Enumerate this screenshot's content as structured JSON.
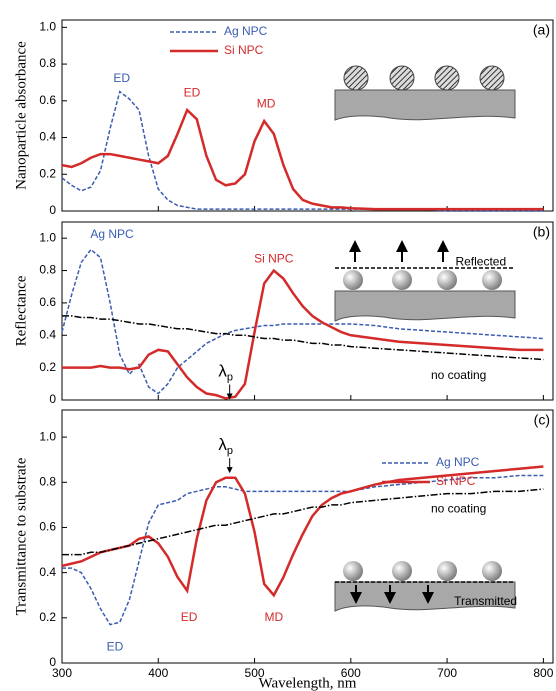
{
  "chart_data": [
    {
      "type": "line",
      "ylabel": "Nanoparticle absorbance",
      "panel_label": "(a)",
      "legend": true,
      "x": [
        300,
        310,
        320,
        330,
        340,
        350,
        360,
        370,
        380,
        390,
        400,
        410,
        420,
        430,
        440,
        450,
        460,
        470,
        480,
        490,
        500,
        510,
        520,
        530,
        540,
        550,
        560,
        570,
        580,
        590,
        600,
        625,
        650,
        675,
        700,
        725,
        750,
        775,
        800
      ],
      "xlim": [
        300,
        810
      ],
      "ylim": [
        0,
        1.04
      ],
      "yticks": [
        0,
        0.2,
        0.4,
        0.6,
        0.8,
        {
          "value": 1,
          "label": "1.0"
        }
      ],
      "series": [
        {
          "name": "Ag NPC",
          "color": "#3a5db0",
          "dash": "dashed",
          "values": [
            0.18,
            0.14,
            0.11,
            0.13,
            0.22,
            0.45,
            0.65,
            0.61,
            0.55,
            0.3,
            0.12,
            0.06,
            0.03,
            0.02,
            0.01,
            0.01,
            0.01,
            0.01,
            0.01,
            0.01,
            0.01,
            0.01,
            0.01,
            0.01,
            0.01,
            0.01,
            0.01,
            0.01,
            0.01,
            0.01,
            0.01,
            0.01,
            0.01,
            0.01,
            0,
            0,
            0,
            0,
            0
          ]
        },
        {
          "name": "Si NPC",
          "color": "#d42a2a",
          "dash": "solid",
          "values": [
            0.25,
            0.24,
            0.26,
            0.29,
            0.31,
            0.31,
            0.3,
            0.29,
            0.28,
            0.27,
            0.26,
            0.3,
            0.42,
            0.55,
            0.5,
            0.3,
            0.17,
            0.14,
            0.15,
            0.2,
            0.38,
            0.49,
            0.42,
            0.25,
            0.12,
            0.06,
            0.04,
            0.03,
            0.02,
            0.02,
            0.015,
            0.01,
            0.01,
            0.01,
            0.01,
            0.01,
            0.01,
            0.01,
            0.01
          ]
        }
      ],
      "annotations": [
        {
          "text": "ED",
          "color": "#3a5db0"
        },
        {
          "text": "ED",
          "color": "#d42a2a"
        },
        {
          "text": "MD",
          "color": "#d42a2a"
        }
      ]
    },
    {
      "type": "line",
      "ylabel": "Reflectance",
      "panel_label": "(b)",
      "legend": false,
      "x": [
        300,
        310,
        320,
        330,
        340,
        350,
        360,
        370,
        380,
        390,
        400,
        410,
        420,
        430,
        440,
        450,
        460,
        470,
        480,
        490,
        500,
        510,
        520,
        530,
        540,
        550,
        560,
        570,
        580,
        590,
        600,
        625,
        650,
        675,
        700,
        725,
        750,
        775,
        800
      ],
      "xlim": [
        300,
        810
      ],
      "ylim": [
        0,
        1.1
      ],
      "yticks": [
        0,
        0.2,
        0.4,
        0.6,
        0.8,
        {
          "value": 1,
          "label": "1.0"
        }
      ],
      "series": [
        {
          "name": "Ag NPC",
          "color": "#3a5db0",
          "dash": "dashed",
          "values": [
            0.42,
            0.65,
            0.85,
            0.93,
            0.88,
            0.6,
            0.28,
            0.16,
            0.22,
            0.08,
            0.04,
            0.1,
            0.2,
            0.25,
            0.3,
            0.35,
            0.38,
            0.41,
            0.43,
            0.44,
            0.45,
            0.46,
            0.46,
            0.47,
            0.47,
            0.47,
            0.47,
            0.47,
            0.47,
            0.47,
            0.47,
            0.46,
            0.44,
            0.43,
            0.42,
            0.41,
            0.4,
            0.39,
            0.38
          ]
        },
        {
          "name": "Si NPC",
          "color": "#d42a2a",
          "dash": "solid",
          "values": [
            0.2,
            0.2,
            0.2,
            0.2,
            0.21,
            0.2,
            0.2,
            0.19,
            0.2,
            0.28,
            0.31,
            0.3,
            0.22,
            0.14,
            0.08,
            0.04,
            0.03,
            0.01,
            0.02,
            0.1,
            0.42,
            0.72,
            0.8,
            0.75,
            0.66,
            0.58,
            0.52,
            0.48,
            0.45,
            0.42,
            0.4,
            0.38,
            0.36,
            0.35,
            0.34,
            0.33,
            0.32,
            0.31,
            0.31
          ]
        },
        {
          "name": "no coating",
          "color": "#000000",
          "dash": "dashdot",
          "values": [
            0.52,
            0.52,
            0.51,
            0.51,
            0.5,
            0.5,
            0.49,
            0.48,
            0.47,
            0.47,
            0.46,
            0.45,
            0.44,
            0.44,
            0.43,
            0.42,
            0.41,
            0.41,
            0.4,
            0.4,
            0.39,
            0.38,
            0.38,
            0.37,
            0.37,
            0.36,
            0.35,
            0.35,
            0.34,
            0.34,
            0.33,
            0.32,
            0.31,
            0.3,
            0.29,
            0.28,
            0.27,
            0.26,
            0.25
          ]
        }
      ],
      "annotations": [
        {
          "text": "λ",
          "subscript": "p",
          "color": "#000000"
        },
        {
          "text": "Reflected",
          "color": "#000000"
        }
      ]
    },
    {
      "type": "line",
      "ylabel": "Transmittance to substrate",
      "xlabel": "Wavelength, nm",
      "panel_label": "(c)",
      "legend": true,
      "x": [
        300,
        310,
        320,
        330,
        340,
        350,
        360,
        370,
        380,
        390,
        400,
        410,
        420,
        430,
        440,
        450,
        460,
        470,
        480,
        490,
        500,
        510,
        520,
        530,
        540,
        550,
        560,
        570,
        580,
        590,
        600,
        625,
        650,
        675,
        700,
        725,
        750,
        775,
        800
      ],
      "xlim": [
        300,
        810
      ],
      "ylim": [
        0,
        1.12
      ],
      "xticks": [
        300,
        400,
        500,
        600,
        700,
        800
      ],
      "yticks": [
        0,
        0.2,
        0.4,
        0.6,
        0.8,
        {
          "value": 1,
          "label": "1.0"
        }
      ],
      "series": [
        {
          "name": "Ag NPC",
          "color": "#3a5db0",
          "dash": "dashed",
          "values": [
            0.42,
            0.42,
            0.4,
            0.33,
            0.24,
            0.17,
            0.18,
            0.28,
            0.45,
            0.62,
            0.7,
            0.71,
            0.72,
            0.75,
            0.76,
            0.77,
            0.78,
            0.78,
            0.77,
            0.76,
            0.76,
            0.76,
            0.76,
            0.76,
            0.76,
            0.76,
            0.76,
            0.76,
            0.76,
            0.76,
            0.76,
            0.78,
            0.79,
            0.8,
            0.81,
            0.82,
            0.82,
            0.83,
            0.83
          ]
        },
        {
          "name": "Si NPC",
          "color": "#d42a2a",
          "dash": "solid",
          "values": [
            0.43,
            0.44,
            0.45,
            0.47,
            0.49,
            0.5,
            0.51,
            0.52,
            0.55,
            0.56,
            0.53,
            0.47,
            0.38,
            0.32,
            0.55,
            0.72,
            0.8,
            0.82,
            0.82,
            0.75,
            0.58,
            0.35,
            0.3,
            0.38,
            0.48,
            0.57,
            0.65,
            0.7,
            0.73,
            0.75,
            0.76,
            0.79,
            0.81,
            0.82,
            0.83,
            0.84,
            0.85,
            0.86,
            0.87
          ]
        },
        {
          "name": "no coating",
          "color": "#000000",
          "dash": "dashdot",
          "values": [
            0.48,
            0.48,
            0.48,
            0.49,
            0.49,
            0.5,
            0.51,
            0.52,
            0.53,
            0.54,
            0.55,
            0.56,
            0.57,
            0.58,
            0.59,
            0.6,
            0.61,
            0.61,
            0.62,
            0.63,
            0.64,
            0.65,
            0.66,
            0.66,
            0.67,
            0.68,
            0.69,
            0.69,
            0.7,
            0.7,
            0.71,
            0.72,
            0.73,
            0.74,
            0.75,
            0.75,
            0.76,
            0.76,
            0.77
          ]
        }
      ],
      "annotations": [
        {
          "text": "λ",
          "subscript": "p",
          "color": "#000000"
        },
        {
          "text": "ED",
          "color": "#3a5db0"
        },
        {
          "text": "ED",
          "color": "#d42a2a"
        },
        {
          "text": "MD",
          "color": "#d42a2a"
        },
        {
          "text": "Transmitted",
          "color": "#000000"
        }
      ]
    }
  ]
}
